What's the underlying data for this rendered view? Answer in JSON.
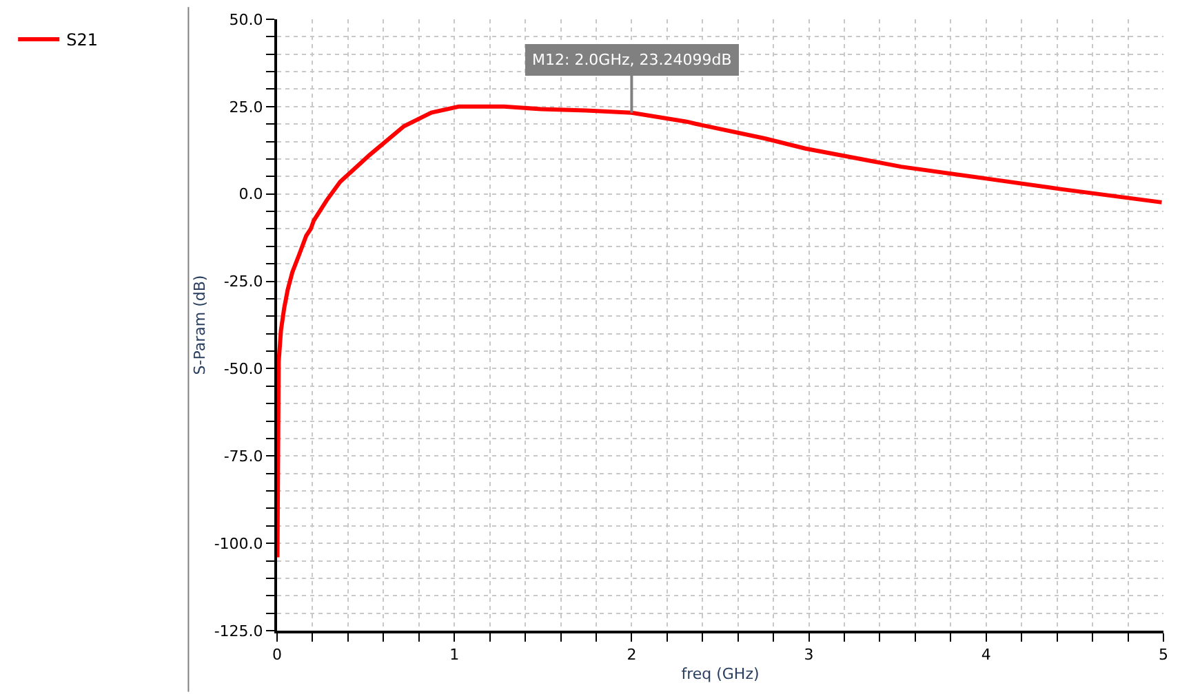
{
  "chart_data": {
    "type": "line",
    "xlabel": "freq (GHz)",
    "ylabel": "S-Param (dB)",
    "xlim": [
      0,
      5
    ],
    "ylim": [
      -125,
      50
    ],
    "xticks": [
      0,
      {
        "value": 0.2,
        "label": null
      },
      {
        "value": 0.4,
        "label": null
      },
      {
        "value": 0.6,
        "label": null
      },
      {
        "value": 0.8,
        "label": null
      },
      1,
      {
        "value": 1.2,
        "label": null
      },
      {
        "value": 1.4,
        "label": null
      },
      {
        "value": 1.6,
        "label": null
      },
      {
        "value": 1.8,
        "label": null
      },
      2,
      {
        "value": 2.2,
        "label": null
      },
      {
        "value": 2.4,
        "label": null
      },
      {
        "value": 2.6,
        "label": null
      },
      {
        "value": 2.8,
        "label": null
      },
      3,
      {
        "value": 3.2,
        "label": null
      },
      {
        "value": 3.4,
        "label": null
      },
      {
        "value": 3.6,
        "label": null
      },
      {
        "value": 3.8,
        "label": null
      },
      4,
      {
        "value": 4.2,
        "label": null
      },
      {
        "value": 4.4,
        "label": null
      },
      {
        "value": 4.6,
        "label": null
      },
      {
        "value": 4.8,
        "label": null
      },
      5
    ],
    "yticks": [
      {
        "value": -125,
        "label": "-125.0"
      },
      {
        "value": -120,
        "label": null
      },
      {
        "value": -115,
        "label": null
      },
      {
        "value": -110,
        "label": null
      },
      {
        "value": -105,
        "label": null
      },
      {
        "value": -100,
        "label": "-100.0"
      },
      {
        "value": -95,
        "label": null
      },
      {
        "value": -90,
        "label": null
      },
      {
        "value": -85,
        "label": null
      },
      {
        "value": -80,
        "label": null
      },
      {
        "value": -75,
        "label": "-75.0"
      },
      {
        "value": -70,
        "label": null
      },
      {
        "value": -65,
        "label": null
      },
      {
        "value": -60,
        "label": null
      },
      {
        "value": -55,
        "label": null
      },
      {
        "value": -50,
        "label": "-50.0"
      },
      {
        "value": -45,
        "label": null
      },
      {
        "value": -40,
        "label": null
      },
      {
        "value": -35,
        "label": null
      },
      {
        "value": -30,
        "label": null
      },
      {
        "value": -25,
        "label": "-25.0"
      },
      {
        "value": -20,
        "label": null
      },
      {
        "value": -15,
        "label": null
      },
      {
        "value": -10,
        "label": null
      },
      {
        "value": -5,
        "label": null
      },
      {
        "value": 0,
        "label": "0.0"
      },
      {
        "value": 5,
        "label": null
      },
      {
        "value": 10,
        "label": null
      },
      {
        "value": 15,
        "label": null
      },
      {
        "value": 20,
        "label": null
      },
      {
        "value": 25,
        "label": "25.0"
      },
      {
        "value": 30,
        "label": null
      },
      {
        "value": 35,
        "label": null
      },
      {
        "value": 40,
        "label": null
      },
      {
        "value": 45,
        "label": null
      },
      {
        "value": 50,
        "label": "50.0"
      }
    ],
    "grid": true,
    "legend": "top left",
    "marker": "none",
    "line_style": "solid",
    "series": [
      {
        "name": "S21",
        "color": "#ff0000",
        "x": [
          0.002,
          0.009,
          0.022,
          0.04,
          0.06,
          0.086,
          0.125,
          0.164,
          0.19,
          0.207,
          0.28,
          0.356,
          0.523,
          0.716,
          0.87,
          1.025,
          1.28,
          1.49,
          1.745,
          2.0,
          2.31,
          2.36,
          2.75,
          2.98,
          3.52,
          4.0,
          4.42,
          4.99
        ],
        "values": [
          -104,
          -48,
          -39,
          -32.7,
          -27.4,
          -22.4,
          -17.3,
          -12,
          -10,
          -7.6,
          -1.8,
          3.5,
          11.2,
          19.4,
          23.3,
          25,
          25,
          24.3,
          23.9,
          23.24099,
          20.7,
          20.1,
          15.9,
          13,
          7.8,
          4.4,
          1.4,
          -2.4
        ]
      }
    ],
    "annotations": [
      {
        "text": "M12: 2.0GHz, 23.24099dB",
        "x": 2.0,
        "y": 23.24099
      }
    ]
  }
}
